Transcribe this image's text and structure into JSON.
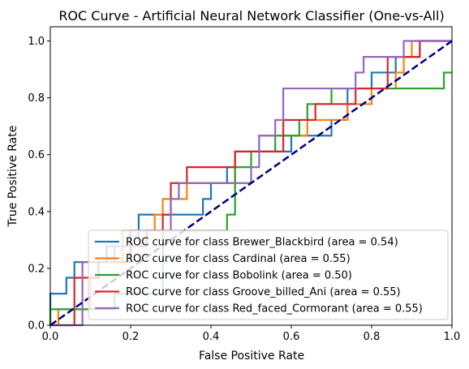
{
  "chart_data": {
    "type": "line",
    "title": "ROC Curve - Artificial Neural Network Classifier (One-vs-All)",
    "xlabel": "False Positive Rate",
    "ylabel": "True Positive Rate",
    "xlim": [
      0.0,
      1.0
    ],
    "ylim": [
      0.0,
      1.05
    ],
    "xticks": [
      "0.0",
      "0.2",
      "0.4",
      "0.6",
      "0.8",
      "1.0"
    ],
    "yticks": [
      "0.0",
      "0.2",
      "0.4",
      "0.6",
      "0.8",
      "1.0"
    ],
    "grid": false,
    "legend_position": "lower right",
    "diagonal": {
      "x": [
        0,
        1
      ],
      "y": [
        0,
        1
      ],
      "color": "#000080",
      "style": "dashed"
    },
    "series": [
      {
        "name": "ROC curve for class Brewer_Blackbird (area = 0.54)",
        "color": "#1f77b4",
        "x": [
          0,
          0,
          0.04,
          0.04,
          0.06,
          0.06,
          0.14,
          0.14,
          0.2,
          0.2,
          0.22,
          0.22,
          0.3,
          0.3,
          0.38,
          0.38,
          0.4,
          0.4,
          0.42,
          0.42,
          0.44,
          0.44,
          0.46,
          0.46,
          0.54,
          0.54,
          0.56,
          0.56,
          0.6,
          0.6,
          0.62,
          0.62,
          0.66,
          0.66,
          0.7,
          0.7,
          0.74,
          0.74,
          0.76,
          0.76,
          0.8,
          0.8,
          0.82,
          0.82,
          0.86,
          0.86,
          0.92,
          0.92,
          1.0
        ],
        "y": [
          0,
          0.111,
          0.111,
          0.167,
          0.167,
          0.222,
          0.222,
          0.278,
          0.278,
          0.333,
          0.333,
          0.389,
          0.389,
          0.389,
          0.389,
          0.444,
          0.444,
          0.5,
          0.5,
          0.5,
          0.5,
          0.556,
          0.556,
          0.611,
          0.611,
          0.611,
          0.611,
          0.611,
          0.611,
          0.667,
          0.667,
          0.667,
          0.667,
          0.667,
          0.667,
          0.722,
          0.722,
          0.833,
          0.833,
          0.833,
          0.833,
          0.889,
          0.889,
          0.889,
          0.889,
          0.944,
          0.944,
          1.0,
          1.0
        ]
      },
      {
        "name": "ROC curve for class Cardinal (area = 0.55)",
        "color": "#ff7f0e",
        "x": [
          0,
          0,
          0.02,
          0.02,
          0.1,
          0.1,
          0.12,
          0.12,
          0.18,
          0.18,
          0.26,
          0.26,
          0.28,
          0.28,
          0.34,
          0.34,
          0.4,
          0.4,
          0.46,
          0.46,
          0.5,
          0.5,
          0.52,
          0.52,
          0.58,
          0.58,
          0.64,
          0.64,
          0.7,
          0.7,
          0.74,
          0.74,
          0.76,
          0.76,
          0.8,
          0.8,
          0.86,
          0.86,
          0.88,
          0.88,
          0.9,
          0.9,
          1.0
        ],
        "y": [
          0,
          0.0,
          0.0,
          0.056,
          0.056,
          0.167,
          0.167,
          0.222,
          0.222,
          0.333,
          0.333,
          0.389,
          0.389,
          0.444,
          0.444,
          0.5,
          0.5,
          0.5,
          0.5,
          0.611,
          0.611,
          0.611,
          0.611,
          0.667,
          0.667,
          0.667,
          0.667,
          0.722,
          0.722,
          0.722,
          0.722,
          0.778,
          0.778,
          0.778,
          0.778,
          0.833,
          0.833,
          0.889,
          0.889,
          0.944,
          0.944,
          1.0,
          1.0
        ]
      },
      {
        "name": "ROC curve for class Bobolink (area = 0.50)",
        "color": "#2ca02c",
        "x": [
          0,
          0,
          0.04,
          0.04,
          0.16,
          0.16,
          0.28,
          0.28,
          0.44,
          0.44,
          0.46,
          0.46,
          0.5,
          0.5,
          0.56,
          0.56,
          0.62,
          0.62,
          0.64,
          0.64,
          0.66,
          0.66,
          0.7,
          0.7,
          0.76,
          0.76,
          0.98,
          0.98,
          1.0
        ],
        "y": [
          0,
          0.056,
          0.056,
          0.056,
          0.056,
          0.111,
          0.111,
          0.333,
          0.333,
          0.389,
          0.389,
          0.556,
          0.556,
          0.611,
          0.611,
          0.667,
          0.667,
          0.722,
          0.722,
          0.778,
          0.778,
          0.778,
          0.778,
          0.833,
          0.833,
          0.833,
          0.833,
          0.889,
          0.889
        ]
      },
      {
        "name": "ROC curve for class Groove_billed_Ani (area = 0.55)",
        "color": "#d62728",
        "x": [
          0,
          0,
          0.06,
          0.06,
          0.12,
          0.12,
          0.2,
          0.2,
          0.24,
          0.24,
          0.26,
          0.26,
          0.28,
          0.28,
          0.3,
          0.3,
          0.32,
          0.32,
          0.34,
          0.34,
          0.4,
          0.4,
          0.46,
          0.46,
          0.52,
          0.52,
          0.58,
          0.58,
          0.64,
          0.64,
          0.66,
          0.66,
          0.72,
          0.72,
          0.76,
          0.76,
          0.84,
          0.84,
          0.86,
          0.86,
          0.92,
          0.92,
          1.0
        ],
        "y": [
          0,
          0.0,
          0.0,
          0.167,
          0.167,
          0.222,
          0.222,
          0.278,
          0.278,
          0.333,
          0.333,
          0.333,
          0.333,
          0.389,
          0.389,
          0.5,
          0.5,
          0.5,
          0.5,
          0.556,
          0.556,
          0.556,
          0.556,
          0.611,
          0.611,
          0.611,
          0.611,
          0.722,
          0.722,
          0.722,
          0.722,
          0.778,
          0.778,
          0.778,
          0.778,
          0.833,
          0.833,
          0.944,
          0.944,
          0.944,
          0.944,
          1.0,
          1.0
        ]
      },
      {
        "name": "ROC curve for class Red_faced_Cormorant (area = 0.55)",
        "color": "#9467bd",
        "x": [
          0,
          0,
          0.08,
          0.08,
          0.16,
          0.16,
          0.22,
          0.22,
          0.3,
          0.3,
          0.32,
          0.32,
          0.34,
          0.34,
          0.5,
          0.5,
          0.52,
          0.52,
          0.56,
          0.56,
          0.58,
          0.58,
          0.76,
          0.76,
          0.78,
          0.78,
          0.84,
          0.84,
          0.88,
          0.88,
          1.0
        ],
        "y": [
          0,
          0.0,
          0.0,
          0.222,
          0.222,
          0.278,
          0.278,
          0.333,
          0.333,
          0.444,
          0.444,
          0.5,
          0.5,
          0.5,
          0.5,
          0.556,
          0.556,
          0.667,
          0.667,
          0.722,
          0.722,
          0.833,
          0.833,
          0.889,
          0.889,
          0.944,
          0.944,
          0.944,
          0.944,
          1.0,
          1.0
        ]
      }
    ]
  }
}
